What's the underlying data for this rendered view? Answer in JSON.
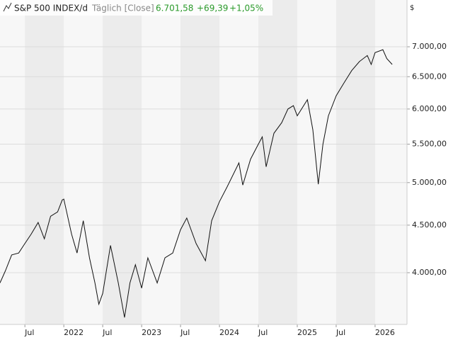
{
  "chart_data": {
    "type": "line",
    "instrument": "S&P 500 INDEX/d",
    "interval": "Täglich [Close]",
    "last": "6.701,58",
    "change": "+69,39",
    "change_pct": "+1,05%",
    "y_unit": "$",
    "log_scale": true,
    "grid": true,
    "color": "#111111",
    "x": [
      2021.18,
      2021.25,
      2021.33,
      2021.42,
      2021.5,
      2021.58,
      2021.67,
      2021.75,
      2021.83,
      2021.92,
      2021.98,
      2022.0,
      2022.1,
      2022.17,
      2022.25,
      2022.33,
      2022.4,
      2022.45,
      2022.5,
      2022.6,
      2022.7,
      2022.78,
      2022.85,
      2022.92,
      2023.0,
      2023.08,
      2023.2,
      2023.3,
      2023.4,
      2023.5,
      2023.58,
      2023.7,
      2023.82,
      2023.9,
      2024.0,
      2024.1,
      2024.25,
      2024.3,
      2024.4,
      2024.5,
      2024.55,
      2024.6,
      2024.7,
      2024.8,
      2024.88,
      2024.95,
      2025.0,
      2025.13,
      2025.2,
      2025.27,
      2025.33,
      2025.4,
      2025.5,
      2025.6,
      2025.7,
      2025.8,
      2025.9,
      2025.95,
      2026.0,
      2026.1,
      2026.15,
      2026.22
    ],
    "values": [
      3900,
      4020,
      4180,
      4200,
      4300,
      4400,
      4530,
      4350,
      4600,
      4650,
      4790,
      4800,
      4400,
      4200,
      4550,
      4150,
      3900,
      3700,
      3800,
      4280,
      3900,
      3580,
      3900,
      4080,
      3850,
      4150,
      3900,
      4150,
      4200,
      4450,
      4580,
      4300,
      4120,
      4550,
      4770,
      4950,
      5250,
      4970,
      5300,
      5500,
      5600,
      5200,
      5650,
      5800,
      6000,
      6050,
      5900,
      6140,
      5700,
      4980,
      5500,
      5900,
      6200,
      6400,
      6600,
      6750,
      6850,
      6700,
      6900,
      6950,
      6800,
      6700
    ],
    "xlim": [
      2021.18,
      2026.41
    ],
    "xticks": [
      {
        "value": 2021.5,
        "label": "Jul"
      },
      {
        "value": 2022,
        "label": "2022"
      },
      {
        "value": 2022.5,
        "label": "Jul"
      },
      {
        "value": 2023,
        "label": "2023"
      },
      {
        "value": 2023.5,
        "label": "Jul"
      },
      {
        "value": 2024,
        "label": "2024"
      },
      {
        "value": 2024.5,
        "label": "Jul"
      },
      {
        "value": 2025,
        "label": "2025"
      },
      {
        "value": 2025.5,
        "label": "Jul"
      },
      {
        "value": 2026,
        "label": "2026"
      }
    ],
    "ylim": [
      3519,
      7860
    ],
    "yticks": [
      {
        "value": 4000,
        "label": "4.000,00"
      },
      {
        "value": 4500,
        "label": "4.500,00"
      },
      {
        "value": 5000,
        "label": "5.000,00"
      },
      {
        "value": 5500,
        "label": "5.500,00"
      },
      {
        "value": 6000,
        "label": "6.000,00"
      },
      {
        "value": 6500,
        "label": "6.500,00"
      },
      {
        "value": 7000,
        "label": "7.000,00"
      }
    ]
  }
}
